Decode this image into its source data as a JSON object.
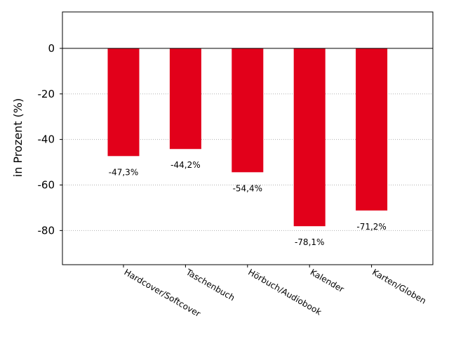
{
  "chart_data": {
    "type": "bar",
    "categories": [
      "Hardcover/Softcover",
      "Taschenbuch",
      "Hörbuch/Audiobook",
      "Kalender",
      "Karten/Globen"
    ],
    "series": [
      {
        "values": [
          -47.3,
          -44.2,
          -54.4,
          -78.1,
          -71.2
        ],
        "data_labels": [
          "-47,3%",
          "-44,2%",
          "-54,4%",
          "-78,1%",
          "-71,2%"
        ]
      }
    ],
    "xlabel": "",
    "ylabel": "in Prozent (%)",
    "ylim": [
      -95,
      16
    ],
    "yticks": [
      0,
      -20,
      -40,
      -60,
      -80
    ],
    "ytick_labels": [
      "0",
      "-20",
      "-40",
      "-60",
      "-80"
    ],
    "grid": "horizontal dotted",
    "bar_color": "#e2001a"
  }
}
